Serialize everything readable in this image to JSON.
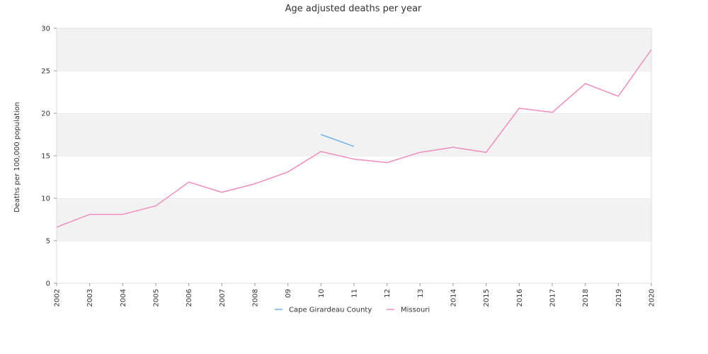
{
  "chart_data": {
    "type": "line",
    "title": "Age adjusted deaths per year",
    "xlabel": "",
    "ylabel": "Deaths per 100,000 population",
    "x": [
      "2002",
      "2003",
      "2004",
      "2005",
      "2006",
      "2007",
      "2008",
      "09",
      "10",
      "11",
      "12",
      "13",
      "2014",
      "2015",
      "2016",
      "2017",
      "2018",
      "2019",
      "2020"
    ],
    "ylim": [
      0,
      30
    ],
    "yticks": [
      0,
      5,
      10,
      15,
      20,
      25,
      30
    ],
    "grid": "alternating horizontal bands",
    "legend": "bottom-center",
    "series": [
      {
        "name": "Cape Girardeau County",
        "color": "#6fb3e8",
        "values": [
          null,
          null,
          null,
          null,
          null,
          null,
          null,
          null,
          17.5,
          16.1,
          null,
          null,
          null,
          null,
          null,
          null,
          null,
          null,
          null
        ]
      },
      {
        "name": "Missouri",
        "color": "#f08cc0",
        "values": [
          6.6,
          8.1,
          8.1,
          9.1,
          11.9,
          10.7,
          11.7,
          13.1,
          15.5,
          14.6,
          14.2,
          15.4,
          16.0,
          15.4,
          20.6,
          20.1,
          23.5,
          22.0,
          27.5
        ]
      }
    ]
  }
}
